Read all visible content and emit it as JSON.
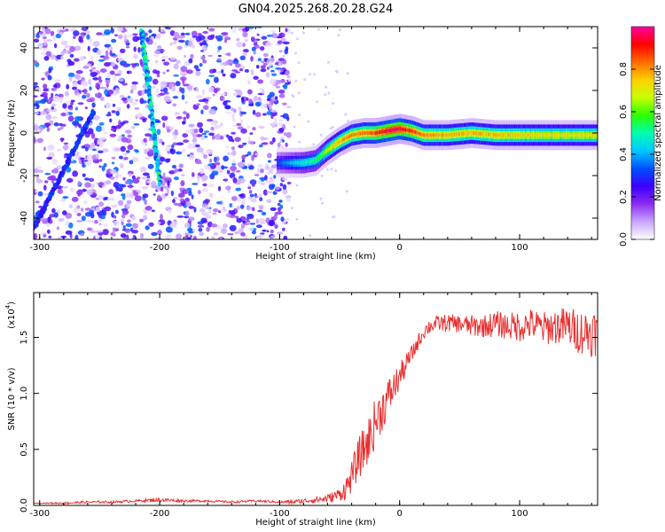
{
  "title": "GN04.2025.268.20.28.G24",
  "chart_data": [
    {
      "type": "heatmap",
      "title": "GN04.2025.268.20.28.G24",
      "xlabel": "Height of straight line (km)",
      "ylabel": "Frequency (Hz)",
      "xlim": [
        -305,
        165
      ],
      "ylim": [
        -50,
        50
      ],
      "x_ticks": [
        -300,
        -200,
        -100,
        0,
        100
      ],
      "x_tick_labels": [
        "-300",
        "-200",
        "-100",
        "0",
        "100"
      ],
      "y_ticks": [
        -40,
        -20,
        0,
        20,
        40
      ],
      "y_tick_labels": [
        "-40",
        "-20",
        "0",
        "20",
        "40"
      ],
      "colorbar": {
        "label": "Normalized spectral amplitude",
        "range": [
          0.0,
          1.0
        ],
        "ticks": [
          0.0,
          0.2,
          0.4,
          0.6,
          0.8
        ],
        "tick_labels": [
          "0.0",
          "0.2",
          "0.4",
          "0.6",
          "0.8"
        ],
        "colormap": "rainbow",
        "colors": [
          "#ffffff",
          "#c9a6ff",
          "#8b2cf0",
          "#3a00ff",
          "#0050ff",
          "#00c8ff",
          "#00ffb0",
          "#2cff00",
          "#c8ff00",
          "#ffd000",
          "#ff6a00",
          "#ff0000",
          "#ff00a0"
        ]
      },
      "ridge_track": {
        "description_values_x_km": [
          -100,
          -80,
          -70,
          -60,
          -50,
          -40,
          -30,
          -20,
          -10,
          0,
          10,
          20,
          40,
          60,
          80,
          100,
          120,
          140,
          160
        ],
        "frequency_hz": [
          -14,
          -14,
          -13,
          -8,
          -4,
          -1,
          0,
          0,
          1,
          2,
          1,
          -1,
          -1,
          0,
          -1,
          -1,
          -1,
          -1,
          -1
        ],
        "amplitude": [
          0.35,
          0.5,
          0.55,
          0.7,
          0.8,
          0.85,
          0.85,
          0.9,
          1.0,
          1.0,
          0.9,
          0.85,
          0.8,
          0.8,
          0.8,
          0.78,
          0.75,
          0.75,
          0.75
        ]
      },
      "noise_region_x_max": -100,
      "diagonal_streaks": [
        {
          "x": [
            -215,
            -200
          ],
          "y": [
            48,
            -24
          ]
        },
        {
          "x": [
            -305,
            -255
          ],
          "y": [
            -45,
            10
          ]
        }
      ],
      "grid": false
    },
    {
      "type": "line",
      "xlabel": "Height of straight line (km)",
      "ylabel": "SNR (10 * v/v)",
      "y_multiplier": "(x10",
      "y_multiplier_exp": "4",
      "y_multiplier_close": ")",
      "xlim": [
        -305,
        165
      ],
      "ylim": [
        0.0,
        1.9
      ],
      "x_ticks": [
        -300,
        -200,
        -100,
        0,
        100
      ],
      "x_tick_labels": [
        "-300",
        "-200",
        "-100",
        "0",
        "100"
      ],
      "y_ticks": [
        0.0,
        0.5,
        1.0,
        1.5
      ],
      "y_tick_labels": [
        "0.0",
        "0.5",
        "1.0",
        "1.5"
      ],
      "series_color": "#e83030",
      "series": [
        {
          "x": [
            -305,
            -280,
            -260,
            -240,
            -220,
            -200,
            -180,
            -160,
            -140,
            -120,
            -100,
            -90,
            -80,
            -70,
            -60,
            -50,
            -45,
            -40,
            -35,
            -30,
            -25,
            -20,
            -15,
            -10,
            -5,
            0,
            5,
            10,
            15,
            20,
            25,
            30,
            40,
            50,
            60,
            70,
            80,
            90,
            100,
            110,
            120,
            130,
            140,
            150,
            160,
            165
          ],
          "values": [
            0.02,
            0.02,
            0.03,
            0.03,
            0.04,
            0.05,
            0.04,
            0.04,
            0.03,
            0.04,
            0.03,
            0.03,
            0.04,
            0.05,
            0.06,
            0.1,
            0.15,
            0.25,
            0.4,
            0.5,
            0.6,
            0.75,
            0.85,
            0.95,
            1.05,
            1.15,
            1.25,
            1.35,
            1.45,
            1.55,
            1.6,
            1.62,
            1.63,
            1.62,
            1.6,
            1.6,
            1.62,
            1.6,
            1.6,
            1.62,
            1.58,
            1.6,
            1.6,
            1.55,
            1.55,
            1.55
          ],
          "noise_amplitude": [
            0.0,
            0.01,
            0.01,
            0.01,
            0.01,
            0.02,
            0.01,
            0.01,
            0.01,
            0.01,
            0.01,
            0.02,
            0.02,
            0.03,
            0.04,
            0.06,
            0.1,
            0.14,
            0.18,
            0.2,
            0.22,
            0.22,
            0.2,
            0.18,
            0.15,
            0.12,
            0.1,
            0.08,
            0.07,
            0.07,
            0.07,
            0.07,
            0.08,
            0.08,
            0.1,
            0.1,
            0.12,
            0.12,
            0.14,
            0.14,
            0.15,
            0.16,
            0.18,
            0.2,
            0.22,
            0.22
          ]
        }
      ],
      "grid": false
    }
  ]
}
